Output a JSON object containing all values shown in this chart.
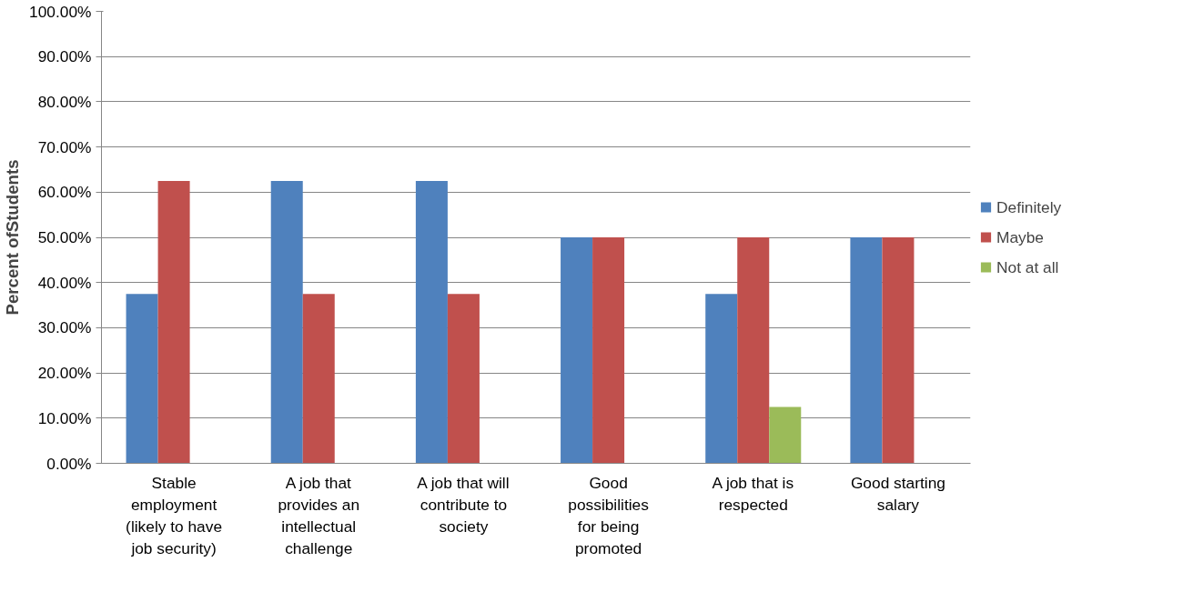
{
  "chart_data": {
    "type": "bar",
    "ylabel": "Percent ofStudents",
    "categories": [
      "Stable employment (likely to have job security)",
      "A job that provides an intellectual challenge",
      "A job that will contribute to society",
      "Good possibilities for being promoted",
      "A job that is respected",
      "Good starting salary"
    ],
    "series": [
      {
        "name": "Definitely",
        "color": "#4f81bd",
        "values": [
          37.5,
          62.5,
          62.5,
          50,
          37.5,
          50
        ]
      },
      {
        "name": "Maybe",
        "color": "#c0504d",
        "values": [
          62.5,
          37.5,
          37.5,
          50,
          50,
          50
        ]
      },
      {
        "name": "Not at all",
        "color": "#9bbb59",
        "values": [
          0,
          0,
          0,
          0,
          12.5,
          0
        ]
      }
    ],
    "ylim": [
      0,
      100
    ],
    "yticks": [
      {
        "value": 0,
        "label": "0.00%"
      },
      {
        "value": 10,
        "label": "10.00%"
      },
      {
        "value": 20,
        "label": "20.00%"
      },
      {
        "value": 30,
        "label": "30.00%"
      },
      {
        "value": 40,
        "label": "40.00%"
      },
      {
        "value": 50,
        "label": "50.00%"
      },
      {
        "value": 60,
        "label": "60.00%"
      },
      {
        "value": 70,
        "label": "70.00%"
      },
      {
        "value": 80,
        "label": "80.00%"
      },
      {
        "value": 90,
        "label": "90.00%"
      },
      {
        "value": 100,
        "label": "100.00%"
      }
    ],
    "grid": "y",
    "legend": "right"
  }
}
